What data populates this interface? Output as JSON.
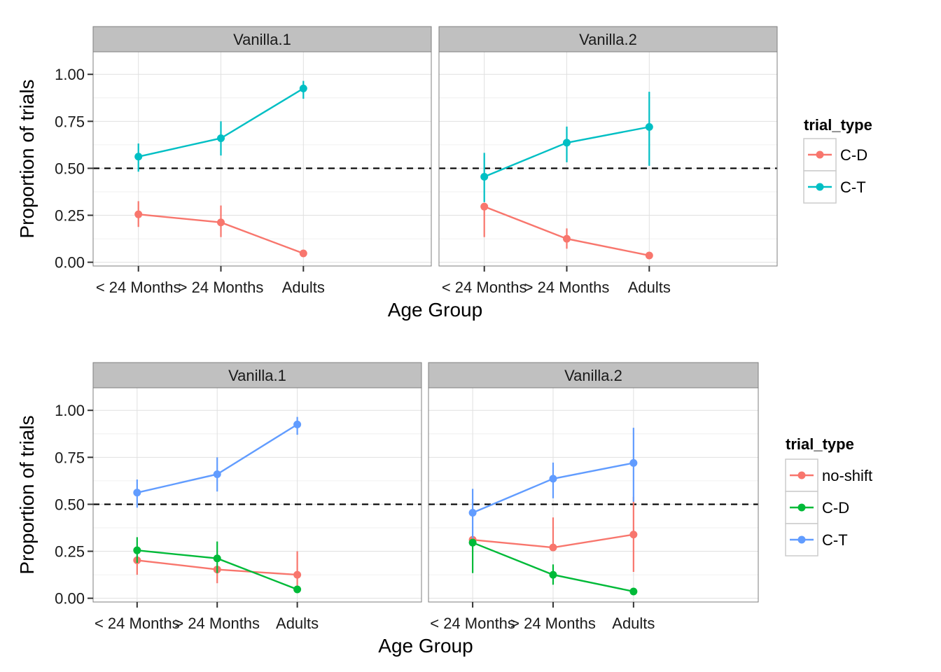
{
  "colors": {
    "panel_bg": "#ffffff",
    "strip_bg": "#c0c0c0",
    "grid_major": "#e0e0e0",
    "grid_minor": "#f0f0f0",
    "border": "#7f7f7f",
    "reference_line": "#000000"
  },
  "chart_data": [
    {
      "type": "line",
      "facets": [
        "Vanilla.1",
        "Vanilla.2"
      ],
      "categories": [
        "< 24 Months",
        "> 24 Months",
        "Adults"
      ],
      "xlabel": "Age Group",
      "ylabel": "Proportion of trials",
      "ylim": [
        -0.02,
        1.12
      ],
      "yticks": [
        "0.00",
        "0.25",
        "0.50",
        "0.75",
        "1.00"
      ],
      "reference_line": 0.5,
      "grid": true,
      "legend": {
        "title": "trial_type",
        "placement": "right"
      },
      "series": [
        {
          "name": "C-D",
          "color": "#f8766d",
          "values": {
            "Vanilla.1": [
              0.255,
              0.212,
              0.047
            ],
            "Vanilla.2": [
              0.296,
              0.125,
              0.036
            ]
          },
          "errors": {
            "Vanilla.1": [
              [
                0.188,
                0.325
              ],
              [
                0.134,
                0.302
              ],
              [
                0.035,
                0.059
              ]
            ],
            "Vanilla.2": [
              [
                0.134,
                0.296
              ],
              [
                0.072,
                0.18
              ],
              [
                0.028,
                0.045
              ]
            ]
          }
        },
        {
          "name": "C-T",
          "color": "#00bfc4",
          "values": {
            "Vanilla.1": [
              0.562,
              0.66,
              0.925
            ],
            "Vanilla.2": [
              0.455,
              0.636,
              0.72
            ]
          },
          "errors": {
            "Vanilla.1": [
              [
                0.482,
                0.632
              ],
              [
                0.568,
                0.75
              ],
              [
                0.87,
                0.965
              ]
            ],
            "Vanilla.2": [
              [
                0.32,
                0.582
              ],
              [
                0.532,
                0.722
              ],
              [
                0.513,
                0.907
              ]
            ]
          }
        }
      ]
    },
    {
      "type": "line",
      "facets": [
        "Vanilla.1",
        "Vanilla.2"
      ],
      "categories": [
        "< 24 Months",
        "> 24 Months",
        "Adults"
      ],
      "xlabel": "Age Group",
      "ylabel": "Proportion of trials",
      "ylim": [
        -0.02,
        1.12
      ],
      "yticks": [
        "0.00",
        "0.25",
        "0.50",
        "0.75",
        "1.00"
      ],
      "reference_line": 0.5,
      "grid": true,
      "legend": {
        "title": "trial_type",
        "placement": "right"
      },
      "series": [
        {
          "name": "no-shift",
          "color": "#f8766d",
          "values": {
            "Vanilla.1": [
              0.202,
              0.153,
              0.125
            ],
            "Vanilla.2": [
              0.311,
              0.27,
              0.339
            ]
          },
          "errors": {
            "Vanilla.1": [
              [
                0.125,
                0.202
              ],
              [
                0.08,
                0.153
              ],
              [
                0.06,
                0.25
              ]
            ],
            "Vanilla.2": [
              [
                0.311,
                0.311
              ],
              [
                0.27,
                0.43
              ],
              [
                0.14,
                0.54
              ]
            ]
          }
        },
        {
          "name": "C-D",
          "color": "#00ba38",
          "values": {
            "Vanilla.1": [
              0.255,
              0.212,
              0.047
            ],
            "Vanilla.2": [
              0.296,
              0.125,
              0.036
            ]
          },
          "errors": {
            "Vanilla.1": [
              [
                0.188,
                0.325
              ],
              [
                0.134,
                0.302
              ],
              [
                0.035,
                0.059
              ]
            ],
            "Vanilla.2": [
              [
                0.134,
                0.296
              ],
              [
                0.072,
                0.18
              ],
              [
                0.028,
                0.045
              ]
            ]
          }
        },
        {
          "name": "C-T",
          "color": "#619cff",
          "values": {
            "Vanilla.1": [
              0.562,
              0.66,
              0.925
            ],
            "Vanilla.2": [
              0.455,
              0.636,
              0.72
            ]
          },
          "errors": {
            "Vanilla.1": [
              [
                0.482,
                0.632
              ],
              [
                0.568,
                0.75
              ],
              [
                0.87,
                0.965
              ]
            ],
            "Vanilla.2": [
              [
                0.32,
                0.582
              ],
              [
                0.532,
                0.722
              ],
              [
                0.513,
                0.907
              ]
            ]
          }
        }
      ]
    }
  ]
}
